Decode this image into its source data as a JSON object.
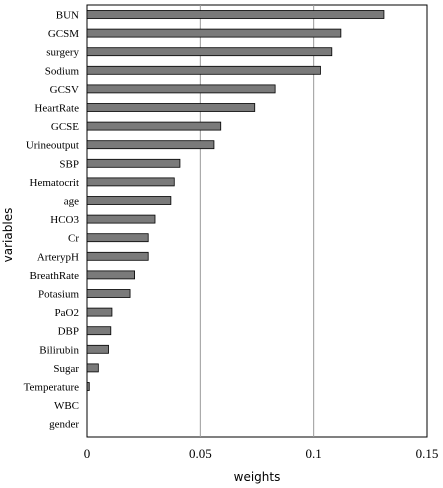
{
  "chart_data": {
    "type": "bar",
    "orientation": "horizontal",
    "xlabel": "weights",
    "ylabel": "variables",
    "xlim": [
      0,
      0.15
    ],
    "xticks": [
      0,
      0.05,
      0.1,
      0.15
    ],
    "xtick_labels": [
      "0",
      "0.05",
      "0.1",
      "0.15"
    ],
    "grid": "vertical gridlines",
    "bar_color": "#7a7a7a",
    "categories": [
      "BUN",
      "GCSM",
      "surgery",
      "Sodium",
      "GCSV",
      "HeartRate",
      "GCSE",
      "Urineoutput",
      "SBP",
      "Hematocrit",
      "age",
      "HCO3",
      "Cr",
      "ArterypH",
      "BreathRate",
      "Potasium",
      "PaO2",
      "DBP",
      "Bilirubin",
      "Sugar",
      "Temperature",
      "WBC",
      "gender"
    ],
    "values": [
      0.131,
      0.112,
      0.108,
      0.103,
      0.083,
      0.074,
      0.059,
      0.056,
      0.041,
      0.0385,
      0.037,
      0.03,
      0.027,
      0.027,
      0.021,
      0.019,
      0.011,
      0.0105,
      0.0095,
      0.005,
      0.001,
      0.0,
      0.0
    ]
  }
}
